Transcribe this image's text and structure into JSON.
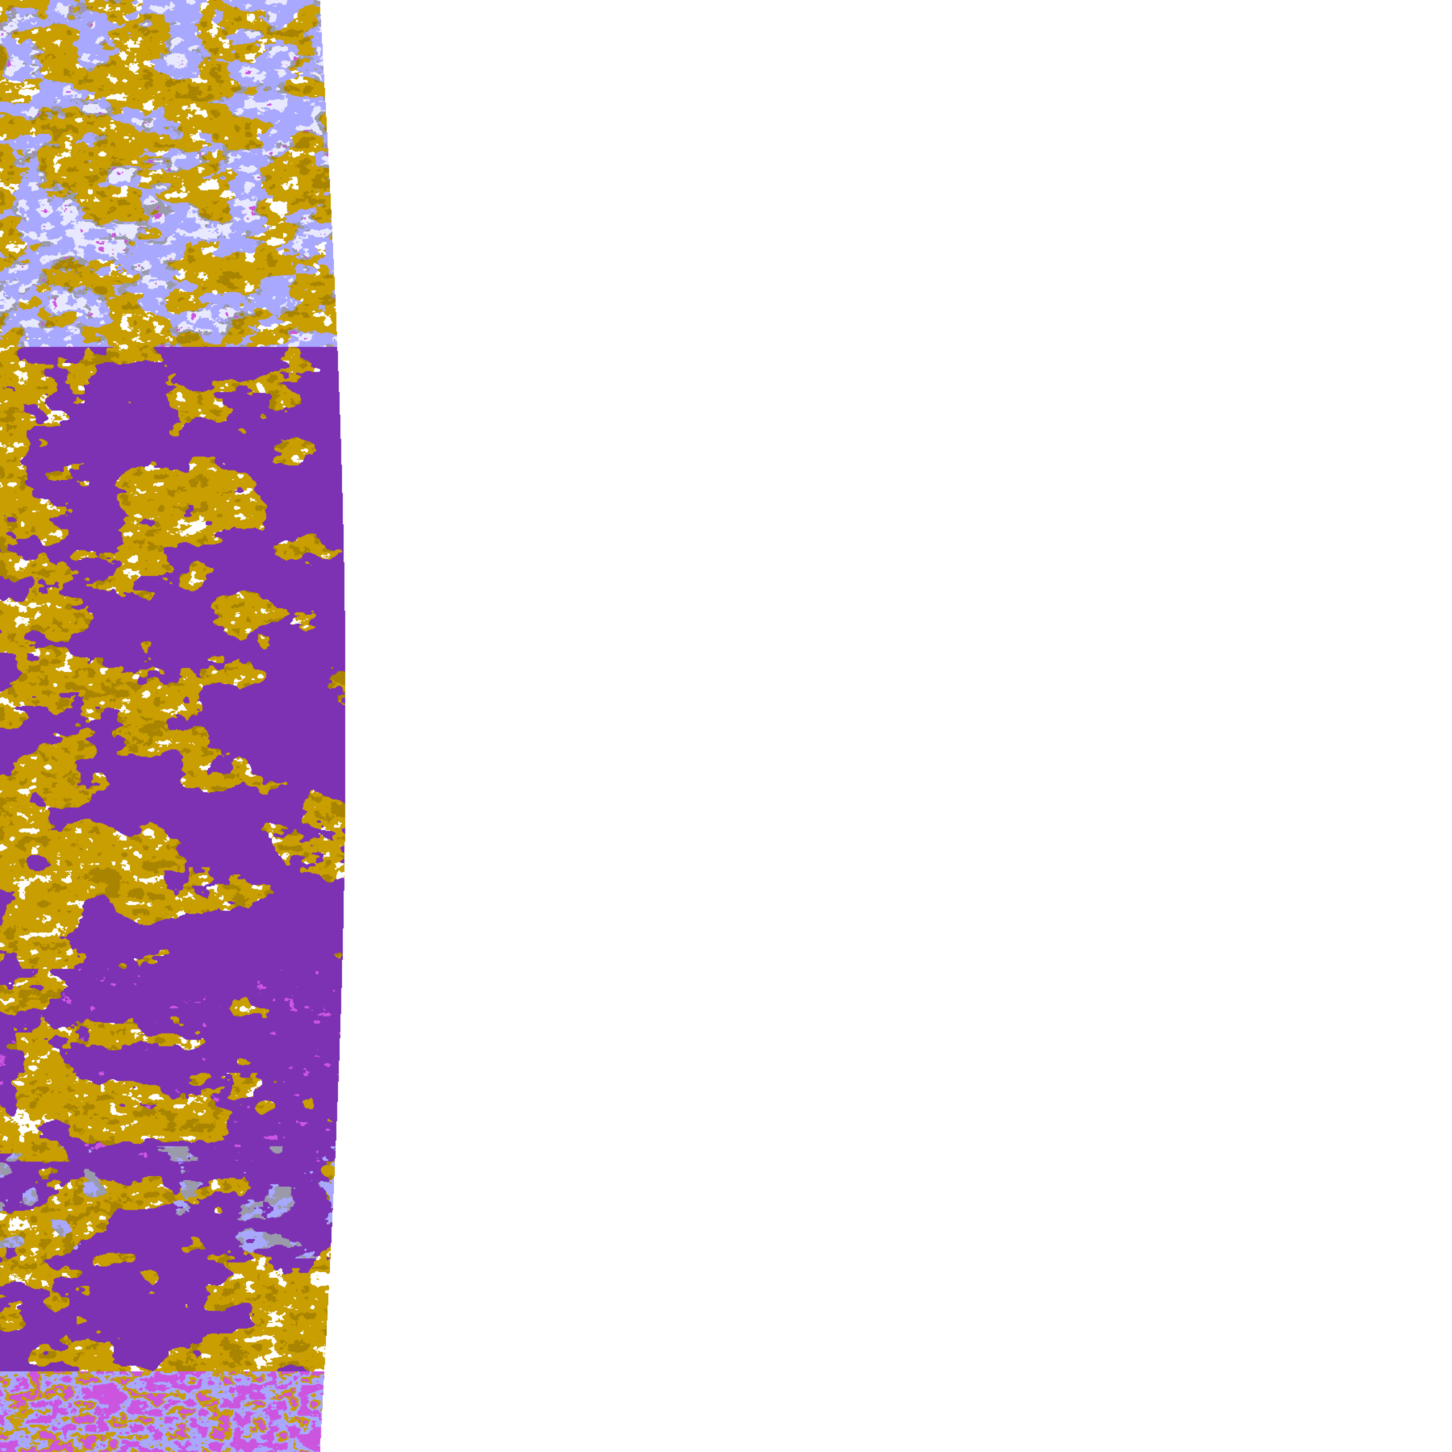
{
  "image": {
    "kind": "satellite swath classification imagery",
    "background_color": "#ffffff",
    "palette": {
      "gold": "#c89e00",
      "dark_gold": "#a88400",
      "purple": "#7d32b4",
      "lavender": "#a8a8ff",
      "pale_lavender": "#e8e8ff",
      "pink": "#cc55e0",
      "grey": "#9a9aaa",
      "white": "#ffffff"
    }
  }
}
